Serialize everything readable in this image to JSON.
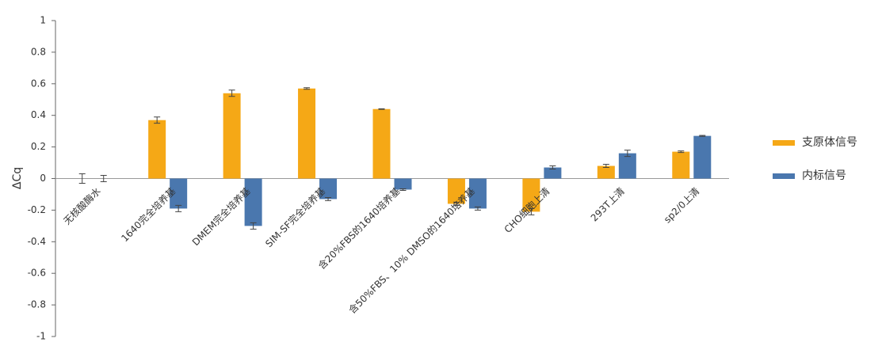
{
  "chart_data": {
    "type": "bar",
    "y_label": "ΔCq",
    "categories": [
      "无核酸酶水",
      "1640完全培养基",
      "DMEM完全培养基",
      "SIM-SF完全培养基",
      "含20%FBS的1640培养基",
      "含50%FBS、10% DMSO的1640培养基",
      "CHO细胞上清",
      "293T上清",
      "sp2/0上清"
    ],
    "series": [
      {
        "name": "支原体信号",
        "color": "#f5a816",
        "values": [
          0,
          0.37,
          0.54,
          0.57,
          0.44,
          -0.16,
          -0.21,
          0.08,
          0.17
        ],
        "errors": [
          0.03,
          0.02,
          0.02,
          0.005,
          0.002,
          0.01,
          0.02,
          0.01,
          0.005
        ]
      },
      {
        "name": "内标信号",
        "color": "#4a77ae",
        "values": [
          0,
          -0.19,
          -0.3,
          -0.13,
          -0.07,
          -0.19,
          0.07,
          0.16,
          0.27
        ],
        "errors": [
          0.02,
          0.02,
          0.02,
          0.01,
          0.005,
          0.01,
          0.01,
          0.02,
          0.003
        ]
      }
    ],
    "ylim": [
      -1,
      1
    ],
    "yticks": [
      -1,
      -0.8,
      -0.6,
      -0.4,
      -0.2,
      0,
      0.2,
      0.4,
      0.6,
      0.8,
      1
    ]
  }
}
